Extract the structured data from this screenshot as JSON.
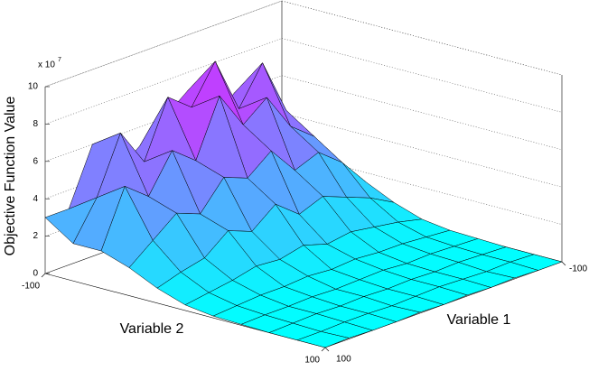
{
  "chart_data": {
    "type": "surface",
    "zlabel": "Objective Function Value",
    "xlabel": "Variable 1",
    "ylabel": "Variable 2",
    "z_multiplier_label": "x 10",
    "z_multiplier_exponent": "7",
    "x": [
      -100,
      -80,
      -60,
      -40,
      -20,
      0,
      20,
      40,
      60,
      80,
      100
    ],
    "y": [
      -100,
      -80,
      -60,
      -40,
      -20,
      0,
      20,
      40,
      60,
      80,
      100
    ],
    "z": [
      [
        2,
        4,
        6,
        5,
        7,
        6,
        5,
        4,
        6,
        3,
        3
      ],
      [
        3,
        5,
        8,
        6,
        9,
        7,
        8,
        5,
        7,
        4,
        2
      ],
      [
        2,
        4,
        5,
        7,
        6,
        8,
        5,
        6,
        4,
        5,
        2
      ],
      [
        1.5,
        3,
        4,
        3.5,
        5,
        4,
        4.5,
        3,
        3.5,
        2.5,
        1.5
      ],
      [
        0.8,
        1.5,
        2,
        2.5,
        2,
        3,
        2,
        2.5,
        1.5,
        1.2,
        0.8
      ],
      [
        0.3,
        0.6,
        0.8,
        1,
        0.8,
        1.2,
        0.9,
        1,
        0.7,
        0.5,
        0.3
      ],
      [
        0.1,
        0.2,
        0.3,
        0.3,
        0.4,
        0.3,
        0.4,
        0.3,
        0.3,
        0.2,
        0.1
      ],
      [
        0.05,
        0.1,
        0.15,
        0.1,
        0.2,
        0.15,
        0.1,
        0.15,
        0.1,
        0.1,
        0.05
      ],
      [
        0,
        0.05,
        0.1,
        0.05,
        0.1,
        0.05,
        0.1,
        0.05,
        0.1,
        0.05,
        0
      ],
      [
        0,
        0.05,
        0,
        0.05,
        0.1,
        0.05,
        0,
        0.05,
        0.05,
        0,
        0
      ],
      [
        0,
        0,
        0.05,
        0,
        0.05,
        0,
        0.05,
        0,
        0,
        0.05,
        0
      ]
    ],
    "xlim": [
      -100,
      100
    ],
    "ylim": [
      -100,
      100
    ],
    "zlim": [
      0,
      10
    ],
    "xticks": [
      -100,
      100
    ],
    "yticks": [
      -100,
      100
    ],
    "zticks": [
      0,
      2,
      4,
      6,
      8,
      10
    ],
    "colormap": [
      "#00ffff",
      "#ff00ff"
    ],
    "grid": true
  }
}
